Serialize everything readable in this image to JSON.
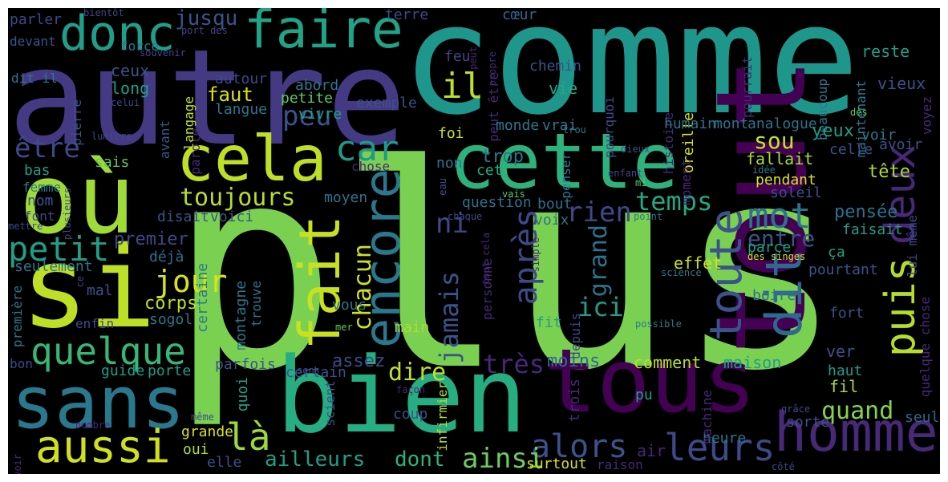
{
  "words": [
    {
      "text": "plus",
      "color": "#7ad151"
    },
    {
      "text": "comme",
      "color": "#1f968b"
    },
    {
      "text": "autre",
      "color": "#443a83"
    },
    {
      "text": "tout",
      "color": "#440154"
    },
    {
      "text": "où",
      "color": "#a0da39"
    },
    {
      "text": "si",
      "color": "#bddf26"
    },
    {
      "text": "bien",
      "color": "#26ad81"
    },
    {
      "text": "tous",
      "color": "#440154"
    },
    {
      "text": "cette",
      "color": "#2db27d"
    },
    {
      "text": "sans",
      "color": "#2a788e"
    },
    {
      "text": "homme",
      "color": "#482878"
    },
    {
      "text": "cela",
      "color": "#bddf26"
    },
    {
      "text": "faire",
      "color": "#20a386"
    },
    {
      "text": "donc",
      "color": "#1f9e89"
    },
    {
      "text": "fait",
      "color": "#c8e020"
    },
    {
      "text": "encore",
      "color": "#2a788e"
    },
    {
      "text": "dit",
      "color": "#31688e"
    },
    {
      "text": "toute",
      "color": "#3b528b"
    },
    {
      "text": "puis",
      "color": "#b5de2b"
    },
    {
      "text": "deux",
      "color": "#482878"
    },
    {
      "text": "quelque",
      "color": "#35b779"
    },
    {
      "text": "aussi",
      "color": "#d0e11c"
    },
    {
      "text": "mot",
      "color": "#2c728e"
    },
    {
      "text": "car",
      "color": "#1f9a8a"
    },
    {
      "text": "être",
      "color": "#3e4989"
    },
    {
      "text": "il",
      "color": "#bddf26"
    },
    {
      "text": "peu",
      "color": "#3b528b"
    },
    {
      "text": "toujours",
      "color": "#b8de29"
    },
    {
      "text": "petit",
      "color": "#1f9e89"
    },
    {
      "text": "jour",
      "color": "#d8e219"
    },
    {
      "text": "là",
      "color": "#9bd93c"
    },
    {
      "text": "temps",
      "color": "#22a884"
    },
    {
      "text": "leurs",
      "color": "#3e4989"
    },
    {
      "text": "alors",
      "color": "#3b528b"
    },
    {
      "text": "ailleurs",
      "color": "#1fa088"
    },
    {
      "text": "dont",
      "color": "#2db27d"
    },
    {
      "text": "ainsi",
      "color": "#6ccd5a"
    },
    {
      "text": "dire",
      "color": "#c0df25"
    },
    {
      "text": "quand",
      "color": "#84d44b"
    },
    {
      "text": "ici",
      "color": "#1f9e89"
    },
    {
      "text": "très",
      "color": "#482878"
    },
    {
      "text": "rien",
      "color": "#3e4989"
    },
    {
      "text": "ni",
      "color": "#3e4989"
    },
    {
      "text": "après",
      "color": "#3e4989"
    },
    {
      "text": "jamais",
      "color": "#3b528b"
    },
    {
      "text": "chacun",
      "color": "#d0e11c"
    },
    {
      "text": "grand",
      "color": "#2c728e"
    },
    {
      "text": "entre",
      "color": "#3b528b"
    },
    {
      "text": "jusqu",
      "color": "#39568c"
    },
    {
      "text": "sou",
      "color": "#c8e020"
    },
    {
      "text": "tête",
      "color": "#addc30"
    },
    {
      "text": "pensée",
      "color": "#2c728e"
    },
    {
      "text": "faisait",
      "color": "#1f9e89"
    },
    {
      "text": "ceux",
      "color": "#3b528b"
    },
    {
      "text": "long",
      "color": "#1f9e89"
    },
    {
      "text": "faut",
      "color": "#d8e219"
    },
    {
      "text": "abord",
      "color": "#2a788e"
    },
    {
      "text": "petite",
      "color": "#5ec962"
    },
    {
      "text": "autour",
      "color": "#3e4989"
    },
    {
      "text": "langue",
      "color": "#2a788e"
    },
    {
      "text": "vivre",
      "color": "#1f9e89"
    },
    {
      "text": "exemple",
      "color": "#3b528b"
    },
    {
      "text": "vie",
      "color": "#22a884"
    },
    {
      "text": "chemin",
      "color": "#3b528b"
    },
    {
      "text": "feu",
      "color": "#3e4989"
    },
    {
      "text": "terre",
      "color": "#3e4989"
    },
    {
      "text": "cœur",
      "color": "#31688e"
    },
    {
      "text": "reste",
      "color": "#1f9e89"
    },
    {
      "text": "vieux",
      "color": "#3b528b"
    },
    {
      "text": "maintenant",
      "color": "#2a788e"
    },
    {
      "text": "beaucoup",
      "color": "#2a788e"
    },
    {
      "text": "histoire",
      "color": "#482878"
    },
    {
      "text": "pourquoi",
      "color": "#3e4989"
    },
    {
      "text": "peut être",
      "color": "#482878"
    },
    {
      "text": "oreille",
      "color": "#d8e219"
    },
    {
      "text": "monde",
      "color": "#2a788e"
    },
    {
      "text": "vrai",
      "color": "#2a788e"
    },
    {
      "text": "foi",
      "color": "#d0e11c"
    },
    {
      "text": "trop",
      "color": "#2a788e"
    },
    {
      "text": "cet",
      "color": "#26ad81"
    },
    {
      "text": "non",
      "color": "#2a788e"
    },
    {
      "text": "humain",
      "color": "#2c728e"
    },
    {
      "text": "mont",
      "color": "#2c728e"
    },
    {
      "text": "analogue",
      "color": "#2c728e"
    },
    {
      "text": "yeux",
      "color": "#1f9e89"
    },
    {
      "text": "voir",
      "color": "#2a788e"
    },
    {
      "text": "avoir",
      "color": "#3b528b"
    },
    {
      "text": "celle",
      "color": "#3b528b"
    },
    {
      "text": "fallait",
      "color": "#addc30"
    },
    {
      "text": "pendant",
      "color": "#d8e219"
    },
    {
      "text": "soleil",
      "color": "#3b528b"
    },
    {
      "text": "parce",
      "color": "#1f9e89"
    },
    {
      "text": "ça",
      "color": "#20a386"
    },
    {
      "text": "pourtant",
      "color": "#39568c"
    },
    {
      "text": "effet",
      "color": "#d0e11c"
    },
    {
      "text": "boire",
      "color": "#2c728e"
    },
    {
      "text": "fort",
      "color": "#3b528b"
    },
    {
      "text": "ver",
      "color": "#3b528b"
    },
    {
      "text": "haut",
      "color": "#1f9e89"
    },
    {
      "text": "fil",
      "color": "#addc30"
    },
    {
      "text": "seul",
      "color": "#31688e"
    },
    {
      "text": "sorte",
      "color": "#3b528b"
    },
    {
      "text": "heure",
      "color": "#2a788e"
    },
    {
      "text": "air",
      "color": "#482878"
    },
    {
      "text": "pu",
      "color": "#1f9e89"
    },
    {
      "text": "maison",
      "color": "#1f9e89"
    },
    {
      "text": "comment",
      "color": "#bddf26"
    },
    {
      "text": "moins",
      "color": "#31688e"
    },
    {
      "text": "bout",
      "color": "#2c728e"
    },
    {
      "text": "voix",
      "color": "#2c728e"
    },
    {
      "text": "question",
      "color": "#2c728e"
    },
    {
      "text": "moyen",
      "color": "#2c728e"
    },
    {
      "text": "premier",
      "color": "#3e4989"
    },
    {
      "text": "déjà",
      "color": "#2c728e"
    },
    {
      "text": "corps",
      "color": "#bddf26"
    },
    {
      "text": "montagne",
      "color": "#2a788e"
    },
    {
      "text": "vous",
      "color": "#2a788e"
    },
    {
      "text": "assez",
      "color": "#3e4989"
    },
    {
      "text": "certaine",
      "color": "#2a788e"
    },
    {
      "text": "quoi",
      "color": "#20a386"
    },
    {
      "text": "parfois",
      "color": "#3b528b"
    },
    {
      "text": "certain",
      "color": "#3b528b"
    },
    {
      "text": "coup",
      "color": "#3b528b"
    },
    {
      "text": "main",
      "color": "#addc30"
    },
    {
      "text": "fit",
      "color": "#1f9e89"
    },
    {
      "text": "trois",
      "color": "#482878"
    },
    {
      "text": "surtout",
      "color": "#d8e219"
    },
    {
      "text": "elle",
      "color": "#3b528b"
    },
    {
      "text": "oui",
      "color": "#addc30"
    },
    {
      "text": "grande",
      "color": "#d8e219"
    },
    {
      "text": "guide",
      "color": "#1f9e89"
    },
    {
      "text": "porte",
      "color": "#1f9e89"
    },
    {
      "text": "sogol",
      "color": "#2a788e"
    },
    {
      "text": "trouve",
      "color": "#2a788e"
    },
    {
      "text": "mal",
      "color": "#3b528b"
    },
    {
      "text": "seulement",
      "color": "#2a788e"
    },
    {
      "text": "nom",
      "color": "#3b528b"
    },
    {
      "text": "bas",
      "color": "#1f9e89"
    },
    {
      "text": "femme",
      "color": "#2a788e"
    },
    {
      "text": "font",
      "color": "#3e4989"
    },
    {
      "text": "sais",
      "color": "#5ec962"
    },
    {
      "text": "disait",
      "color": "#3b528b"
    },
    {
      "text": "voici",
      "color": "#3b528b"
    },
    {
      "text": "bon",
      "color": "#3e4989"
    },
    {
      "text": "enfin",
      "color": "#3e4989"
    },
    {
      "text": "première",
      "color": "#2a788e"
    },
    {
      "text": "parler",
      "color": "#3e4989"
    },
    {
      "text": "devant",
      "color": "#3b528b"
    },
    {
      "text": "dit il",
      "color": "#2a788e"
    },
    {
      "text": "pierre",
      "color": "#3b528b"
    },
    {
      "text": "force",
      "color": "#2a788e"
    },
    {
      "text": "avant",
      "color": "#3b528b"
    },
    {
      "text": "parole",
      "color": "#482878"
    },
    {
      "text": "langage",
      "color": "#bddf26"
    },
    {
      "text": "chose",
      "color": "#482878"
    },
    {
      "text": "penser",
      "color": "#2a788e"
    },
    {
      "text": "moment",
      "color": "#482878"
    },
    {
      "text": "machine",
      "color": "#482878"
    },
    {
      "text": "depuis",
      "color": "#3e4989"
    },
    {
      "text": "personne",
      "color": "#482878"
    },
    {
      "text": "infirmier",
      "color": "#bddf26"
    },
    {
      "text": "scient",
      "color": "#3b528b"
    },
    {
      "text": "raison",
      "color": "#482878"
    },
    {
      "text": "lui même",
      "color": "#3e4989"
    },
    {
      "text": "quelque chose",
      "color": "#482878"
    },
    {
      "text": "voyez",
      "color": "#482878"
    },
    {
      "text": "pourrait",
      "color": "#482878"
    },
    {
      "text": "dès",
      "color": "#5ec962"
    },
    {
      "text": "idée",
      "color": "#2a788e"
    },
    {
      "text": "mi",
      "color": "#5ec962"
    },
    {
      "text": "enfant",
      "color": "#3e4989"
    },
    {
      "text": "dieux",
      "color": "#3b528b"
    },
    {
      "text": "point",
      "color": "#2a788e"
    },
    {
      "text": "des singes",
      "color": "#d0e11c"
    },
    {
      "text": "science",
      "color": "#2a788e"
    },
    {
      "text": "possible",
      "color": "#2a788e"
    },
    {
      "text": "mer",
      "color": "#5ec962"
    },
    {
      "text": "tout cela",
      "color": "#482878"
    },
    {
      "text": "simple",
      "color": "#482878"
    },
    {
      "text": "chaque",
      "color": "#3e4989"
    },
    {
      "text": "vais",
      "color": "#5ec962"
    },
    {
      "text": "eau",
      "color": "#3b528b"
    },
    {
      "text": "trou",
      "color": "#2a788e"
    },
    {
      "text": "propre",
      "color": "#482878"
    },
    {
      "text": "peut",
      "color": "#482878"
    },
    {
      "text": "port des",
      "color": "#3e4989"
    },
    {
      "text": "souvenir",
      "color": "#3e4989"
    },
    {
      "text": "celui",
      "color": "#3e4989"
    },
    {
      "text": "bientôt",
      "color": "#3e4989"
    },
    {
      "text": "lumière",
      "color": "#3e4989"
    },
    {
      "text": "plusieurs",
      "color": "#3e4989"
    },
    {
      "text": "mettre",
      "color": "#3e4989"
    },
    {
      "text": "ce",
      "color": "#3e4989"
    },
    {
      "text": "sens",
      "color": "#3e4989"
    },
    {
      "text": "façon",
      "color": "#482878"
    },
    {
      "text": "même",
      "color": "#3e4989"
    },
    {
      "text": "nombre",
      "color": "#482878"
    },
    {
      "text": "savoir",
      "color": "#482878"
    },
    {
      "text": "grâce",
      "color": "#3e4989"
    },
    {
      "text": "côté",
      "color": "#3e4989"
    }
  ]
}
